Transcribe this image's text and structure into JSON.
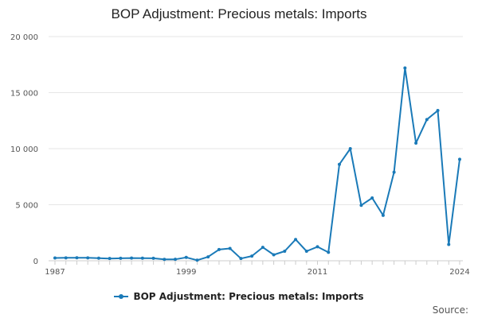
{
  "chart_data": {
    "type": "line",
    "title": "BOP Adjustment: Precious metals: Imports",
    "xlabel": "",
    "ylabel": "",
    "x": [
      1987,
      1988,
      1989,
      1990,
      1991,
      1992,
      1993,
      1994,
      1995,
      1996,
      1997,
      1998,
      1999,
      2000,
      2001,
      2002,
      2003,
      2004,
      2005,
      2006,
      2007,
      2008,
      2009,
      2010,
      2011,
      2012,
      2013,
      2014,
      2015,
      2016,
      2017,
      2018,
      2019,
      2020,
      2021,
      2022,
      2023,
      2024
    ],
    "series": [
      {
        "name": "BOP Adjustment: Precious metals: Imports",
        "color": "#1a7ab8",
        "values": [
          250,
          260,
          270,
          260,
          230,
          200,
          220,
          240,
          230,
          220,
          120,
          130,
          300,
          50,
          350,
          1000,
          1100,
          200,
          420,
          1200,
          530,
          850,
          1900,
          850,
          1250,
          750,
          8600,
          10000,
          4950,
          5600,
          4050,
          7900,
          17200,
          10500,
          12600,
          13400,
          1450,
          9050
        ]
      }
    ],
    "xticks": [
      {
        "value": 1987,
        "label": "1987"
      },
      {
        "value": 1999,
        "label": "1999"
      },
      {
        "value": 2011,
        "label": "2011"
      },
      {
        "value": 2024,
        "label": "2024"
      }
    ],
    "yticks": [
      {
        "value": 0,
        "label": "0"
      },
      {
        "value": 5000,
        "label": "5 000"
      },
      {
        "value": 10000,
        "label": "10 000"
      },
      {
        "value": 15000,
        "label": "15 000"
      },
      {
        "value": 20000,
        "label": "20 000"
      }
    ],
    "xlim": [
      1987,
      2024
    ],
    "ylim": [
      0,
      20000
    ],
    "grid": "horizontal",
    "legend": "bottom-center"
  },
  "source_label": "Source:"
}
